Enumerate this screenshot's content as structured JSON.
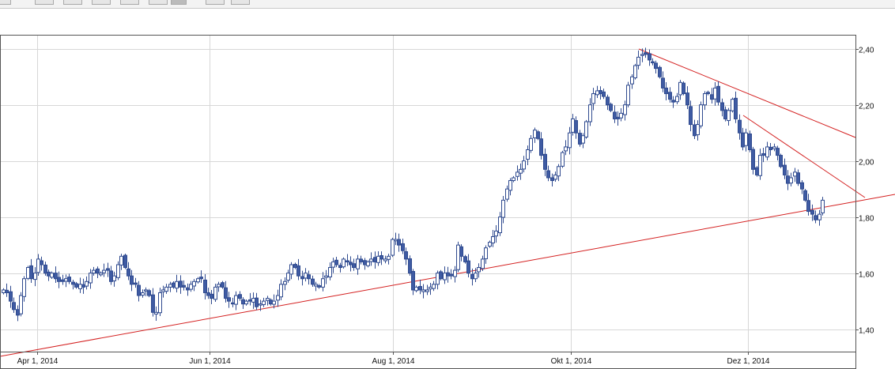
{
  "colors": {
    "bullish": "#ffffff",
    "bearish": "#3f5ba3",
    "candle_outline": "#2f4a8f",
    "trendline": "#d42020",
    "grid": "#d7d7d7",
    "frame": "#555555"
  },
  "chart_data": {
    "type": "candlestick",
    "title": "",
    "xlabel": "",
    "ylabel": "",
    "ylim": [
      1.32,
      2.45
    ],
    "grid": true,
    "x_ticks": [
      "Apr 1, 2014",
      "Jun 1, 2014",
      "Aug 1, 2014",
      "Okt 1, 2014",
      "Dez 1, 2014"
    ],
    "y_ticks": [
      "2,40",
      "2,20",
      "2,00",
      "1,80",
      "1,60",
      "1,40"
    ],
    "y_tick_values": [
      2.4,
      2.2,
      2.0,
      1.8,
      1.6,
      1.4
    ],
    "close": [
      1.54,
      1.53,
      1.5,
      1.47,
      1.45,
      1.52,
      1.58,
      1.62,
      1.58,
      1.6,
      1.65,
      1.63,
      1.6,
      1.59,
      1.6,
      1.58,
      1.57,
      1.57,
      1.58,
      1.57,
      1.56,
      1.55,
      1.56,
      1.55,
      1.57,
      1.6,
      1.61,
      1.6,
      1.6,
      1.61,
      1.61,
      1.57,
      1.59,
      1.63,
      1.66,
      1.62,
      1.59,
      1.56,
      1.56,
      1.52,
      1.53,
      1.54,
      1.52,
      1.46,
      1.46,
      1.53,
      1.54,
      1.55,
      1.56,
      1.55,
      1.57,
      1.55,
      1.55,
      1.54,
      1.56,
      1.57,
      1.58,
      1.58,
      1.53,
      1.52,
      1.51,
      1.55,
      1.56,
      1.55,
      1.51,
      1.5,
      1.49,
      1.52,
      1.51,
      1.49,
      1.5,
      1.5,
      1.51,
      1.48,
      1.49,
      1.5,
      1.51,
      1.49,
      1.5,
      1.52,
      1.56,
      1.57,
      1.6,
      1.63,
      1.62,
      1.59,
      1.58,
      1.6,
      1.58,
      1.56,
      1.56,
      1.55,
      1.58,
      1.59,
      1.62,
      1.64,
      1.63,
      1.62,
      1.65,
      1.64,
      1.63,
      1.62,
      1.65,
      1.64,
      1.63,
      1.64,
      1.65,
      1.64,
      1.66,
      1.65,
      1.65,
      1.66,
      1.72,
      1.72,
      1.7,
      1.68,
      1.65,
      1.6,
      1.54,
      1.55,
      1.54,
      1.54,
      1.54,
      1.55,
      1.56,
      1.6,
      1.58,
      1.6,
      1.59,
      1.59,
      1.61,
      1.7,
      1.66,
      1.64,
      1.6,
      1.58,
      1.6,
      1.62,
      1.65,
      1.69,
      1.71,
      1.73,
      1.75,
      1.8,
      1.86,
      1.9,
      1.93,
      1.94,
      1.96,
      1.97,
      2.0,
      2.04,
      2.08,
      2.11,
      2.08,
      2.02,
      1.97,
      1.94,
      1.93,
      1.95,
      1.98,
      2.03,
      2.05,
      2.1,
      2.15,
      2.1,
      2.06,
      2.09,
      2.14,
      2.2,
      2.24,
      2.25,
      2.24,
      2.23,
      2.2,
      2.18,
      2.15,
      2.15,
      2.17,
      2.2,
      2.27,
      2.3,
      2.34,
      2.37,
      2.38,
      2.38,
      2.36,
      2.35,
      2.33,
      2.3,
      2.26,
      2.24,
      2.22,
      2.21,
      2.23,
      2.28,
      2.24,
      2.2,
      2.13,
      2.09,
      2.13,
      2.2,
      2.24,
      2.24,
      2.22,
      2.26,
      2.21,
      2.18,
      2.15,
      2.18,
      2.22,
      2.15,
      2.1,
      2.05,
      2.1,
      2.04,
      1.97,
      1.95,
      2.02,
      2.02,
      2.05,
      2.04,
      2.05,
      2.02,
      1.98,
      1.95,
      1.92,
      1.94,
      1.96,
      1.92,
      1.9,
      1.86,
      1.82,
      1.81,
      1.79,
      1.81,
      1.86
    ],
    "bearish_markers": [
      "down candle",
      "up candle"
    ]
  }
}
